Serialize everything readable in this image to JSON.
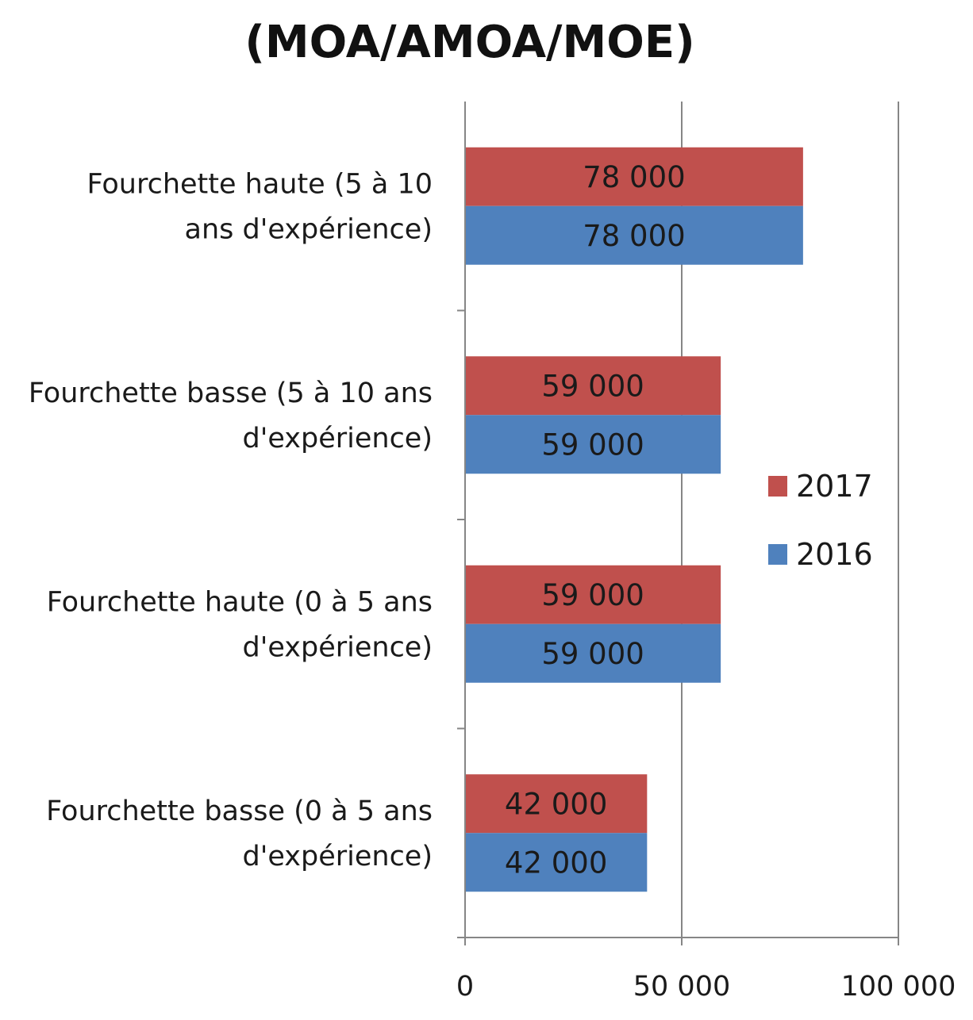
{
  "chart_data": {
    "type": "bar",
    "orientation": "horizontal",
    "title": "(MOA/AMOA/MOE)",
    "categories": [
      "Fourchette haute (5 à 10 ans d'expérience)",
      "Fourchette basse (5 à 10 ans d'expérience)",
      "Fourchette haute (0 à 5 ans d'expérience)",
      "Fourchette basse (0 à 5 ans d'expérience)"
    ],
    "category_lines": [
      [
        "Fourchette haute (5 à 10",
        "ans d'expérience)"
      ],
      [
        "Fourchette basse (5 à 10 ans",
        "d'expérience)"
      ],
      [
        "Fourchette haute (0 à 5 ans",
        "d'expérience)"
      ],
      [
        "Fourchette basse (0 à 5 ans",
        "d'expérience)"
      ]
    ],
    "series": [
      {
        "name": "2017",
        "color": "#c0504d",
        "values": [
          78000,
          59000,
          59000,
          42000
        ],
        "labels": [
          "78 000",
          "59 000",
          "59 000",
          "42 000"
        ]
      },
      {
        "name": "2016",
        "color": "#4f81bd",
        "values": [
          78000,
          59000,
          59000,
          42000
        ],
        "labels": [
          "78 000",
          "59 000",
          "59 000",
          "42 000"
        ]
      }
    ],
    "xlim": [
      0,
      100000
    ],
    "xticks": [
      0,
      50000,
      100000
    ],
    "xtick_labels": [
      "0",
      "50 000",
      "100 000"
    ],
    "gridlines": "vertical",
    "legend_position": "right"
  }
}
